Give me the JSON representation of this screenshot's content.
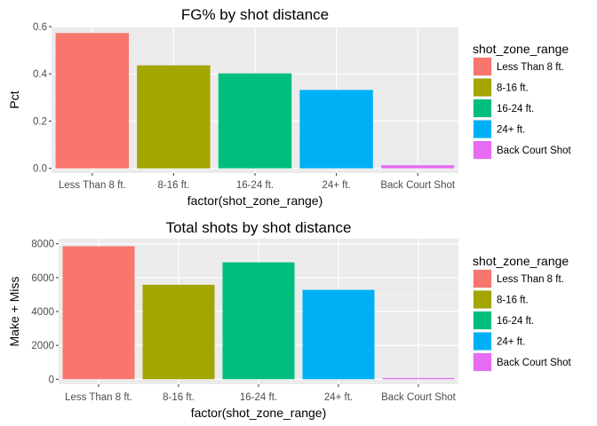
{
  "chart_data": [
    {
      "type": "bar",
      "title": "FG% by shot distance",
      "xlabel": "factor(shot_zone_range)",
      "ylabel": "Pct",
      "categories": [
        "Less Than 8 ft.",
        "8-16 ft.",
        "16-24 ft.",
        "24+ ft.",
        "Back Court Shot"
      ],
      "values": [
        0.573,
        0.436,
        0.402,
        0.332,
        0.013
      ],
      "colors": [
        "#f8766d",
        "#a3a500",
        "#00bf7d",
        "#00b0f6",
        "#e76bf3"
      ],
      "ylim": [
        -0.02,
        0.6
      ],
      "yticks": [
        0.0,
        0.2,
        0.4,
        0.6
      ],
      "ytick_labels": [
        "0.0",
        "0.2",
        "0.4",
        "0.6"
      ],
      "grid": true,
      "legend": {
        "title": "shot_zone_range",
        "position": "right",
        "entries": [
          "Less Than 8 ft.",
          "8-16 ft.",
          "16-24 ft.",
          "24+ ft.",
          "Back Court Shot"
        ]
      }
    },
    {
      "type": "bar",
      "title": "Total shots by shot distance",
      "xlabel": "factor(shot_zone_range)",
      "ylabel": "Make + Miss",
      "categories": [
        "Less Than 8 ft.",
        "8-16 ft.",
        "16-24 ft.",
        "24+ ft.",
        "Back Court Shot"
      ],
      "values": [
        7857,
        5580,
        6907,
        5281,
        72
      ],
      "colors": [
        "#f8766d",
        "#a3a500",
        "#00bf7d",
        "#00b0f6",
        "#e76bf3"
      ],
      "ylim": [
        -300,
        8300
      ],
      "yticks": [
        0,
        2000,
        4000,
        6000,
        8000
      ],
      "ytick_labels": [
        "0",
        "2000",
        "4000",
        "6000",
        "8000"
      ],
      "grid": true,
      "legend": {
        "title": "shot_zone_range",
        "position": "right",
        "entries": [
          "Less Than 8 ft.",
          "8-16 ft.",
          "16-24 ft.",
          "24+ ft.",
          "Back Court Shot"
        ]
      }
    }
  ]
}
